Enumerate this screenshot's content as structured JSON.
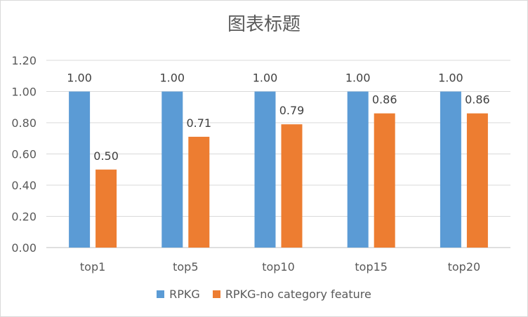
{
  "chart_data": {
    "type": "bar",
    "title": "图表标题",
    "categories": [
      "top1",
      "top5",
      "top10",
      "top15",
      "top20"
    ],
    "series": [
      {
        "name": "RPKG",
        "color": "#5b9bd5",
        "values": [
          1.0,
          1.0,
          1.0,
          1.0,
          1.0
        ]
      },
      {
        "name": "RPKG-no category feature",
        "color": "#ed7d31",
        "values": [
          0.5,
          0.71,
          0.79,
          0.86,
          0.86
        ]
      }
    ],
    "ylim": [
      0,
      1.2
    ],
    "yticks": [
      "0.00",
      "0.20",
      "0.40",
      "0.60",
      "0.80",
      "1.00",
      "1.20"
    ],
    "data_labels": true,
    "grid": true,
    "legend_position": "bottom"
  }
}
